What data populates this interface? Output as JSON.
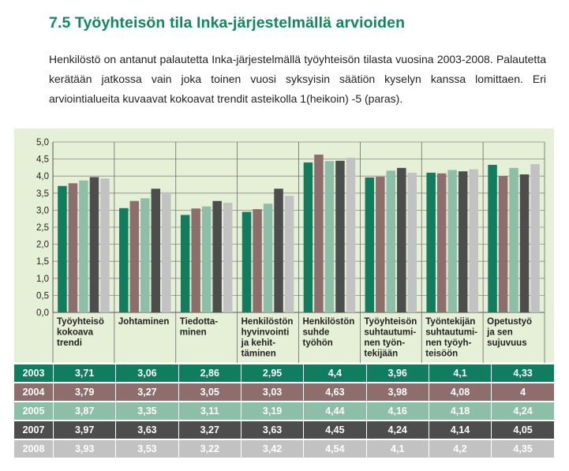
{
  "page": {
    "heading": "7.5 Työyhteisön tila Inka-järjestelmällä arvioiden",
    "intro": "Henkilöstö on antanut palautetta Inka-järjestelmällä työyhteisön tilasta vuosina 2003-2008. Palautetta kerätään jatkossa vain joka toinen vuosi syksyisin säätiön kyselyn kanssa lomittaen. Eri arviointialueita kuvaavat kokoavat trendit asteikolla 1(heikoin) -5 (paras)."
  },
  "chart_data": {
    "type": "bar",
    "title": "",
    "xlabel": "",
    "ylabel": "",
    "ylim": [
      0,
      5
    ],
    "ytick_step": 0.5,
    "grid": true,
    "y_tick_labels": [
      "0,0",
      "0,5",
      "1,0",
      "1,5",
      "2,0",
      "2,5",
      "3,0",
      "3,5",
      "4,0",
      "4,5",
      "5,0"
    ],
    "categories": [
      "Työyhteisö kokoava trendi",
      "Johtaminen",
      "Tiedottaminen",
      "Henkilöstön hyvinvointi ja kehittäminen",
      "Henkilöstön suhde työhön",
      "Työyhteisön suhtautuminen työntekijään",
      "Työntekijän suhtautuminen työyhteisöön",
      "Opetustyö ja sen sujuvuus"
    ],
    "category_label_lines": [
      [
        "Työyhteisö",
        "kokoava",
        "trendi"
      ],
      [
        "Johtaminen"
      ],
      [
        "Tiedotta-",
        "minen"
      ],
      [
        "Henkilöstön",
        "hyvinvointi",
        "ja kehit-",
        "täminen"
      ],
      [
        "Henkilöstön",
        "suhde",
        "työhön"
      ],
      [
        "Työyhteisön",
        "suhtautumi-",
        "nen työn-",
        "tekijään"
      ],
      [
        "Työntekijän",
        "suhtautumi-",
        "nen työyh-",
        "teisöön"
      ],
      [
        "Opetustyö",
        "ja sen",
        "sujuvuus"
      ]
    ],
    "series": [
      {
        "name": "2003",
        "color": "#0f7d5e",
        "text_color": "#ffffff",
        "values": [
          3.71,
          3.06,
          2.86,
          2.95,
          4.4,
          3.96,
          4.1,
          4.33
        ],
        "labels": [
          "3,71",
          "3,06",
          "2,86",
          "2,95",
          "4,4",
          "3,96",
          "4,1",
          "4,33"
        ]
      },
      {
        "name": "2004",
        "color": "#8e6e6c",
        "text_color": "#ffffff",
        "values": [
          3.79,
          3.27,
          3.05,
          3.03,
          4.63,
          3.98,
          4.08,
          4.0
        ],
        "labels": [
          "3,79",
          "3,27",
          "3,05",
          "3,03",
          "4,63",
          "3,98",
          "4,08",
          "4"
        ]
      },
      {
        "name": "2005",
        "color": "#8dbfa8",
        "text_color": "#ffffff",
        "values": [
          3.87,
          3.35,
          3.11,
          3.19,
          4.44,
          4.16,
          4.18,
          4.24
        ],
        "labels": [
          "3,87",
          "3,35",
          "3,11",
          "3,19",
          "4,44",
          "4,16",
          "4,18",
          "4,24"
        ]
      },
      {
        "name": "2007",
        "color": "#4d4d4d",
        "text_color": "#ffffff",
        "values": [
          3.97,
          3.63,
          3.27,
          3.63,
          4.45,
          4.24,
          4.14,
          4.05
        ],
        "labels": [
          "3,97",
          "3,63",
          "3,27",
          "3,63",
          "4,45",
          "4,24",
          "4,14",
          "4,05"
        ]
      },
      {
        "name": "2008",
        "color": "#c2c2c2",
        "text_color": "#ffffff",
        "values": [
          3.93,
          3.53,
          3.22,
          3.42,
          4.54,
          4.1,
          4.2,
          4.35
        ],
        "labels": [
          "3,93",
          "3,53",
          "3,22",
          "3,42",
          "4,54",
          "4,1",
          "4,2",
          "4,35"
        ]
      }
    ]
  }
}
